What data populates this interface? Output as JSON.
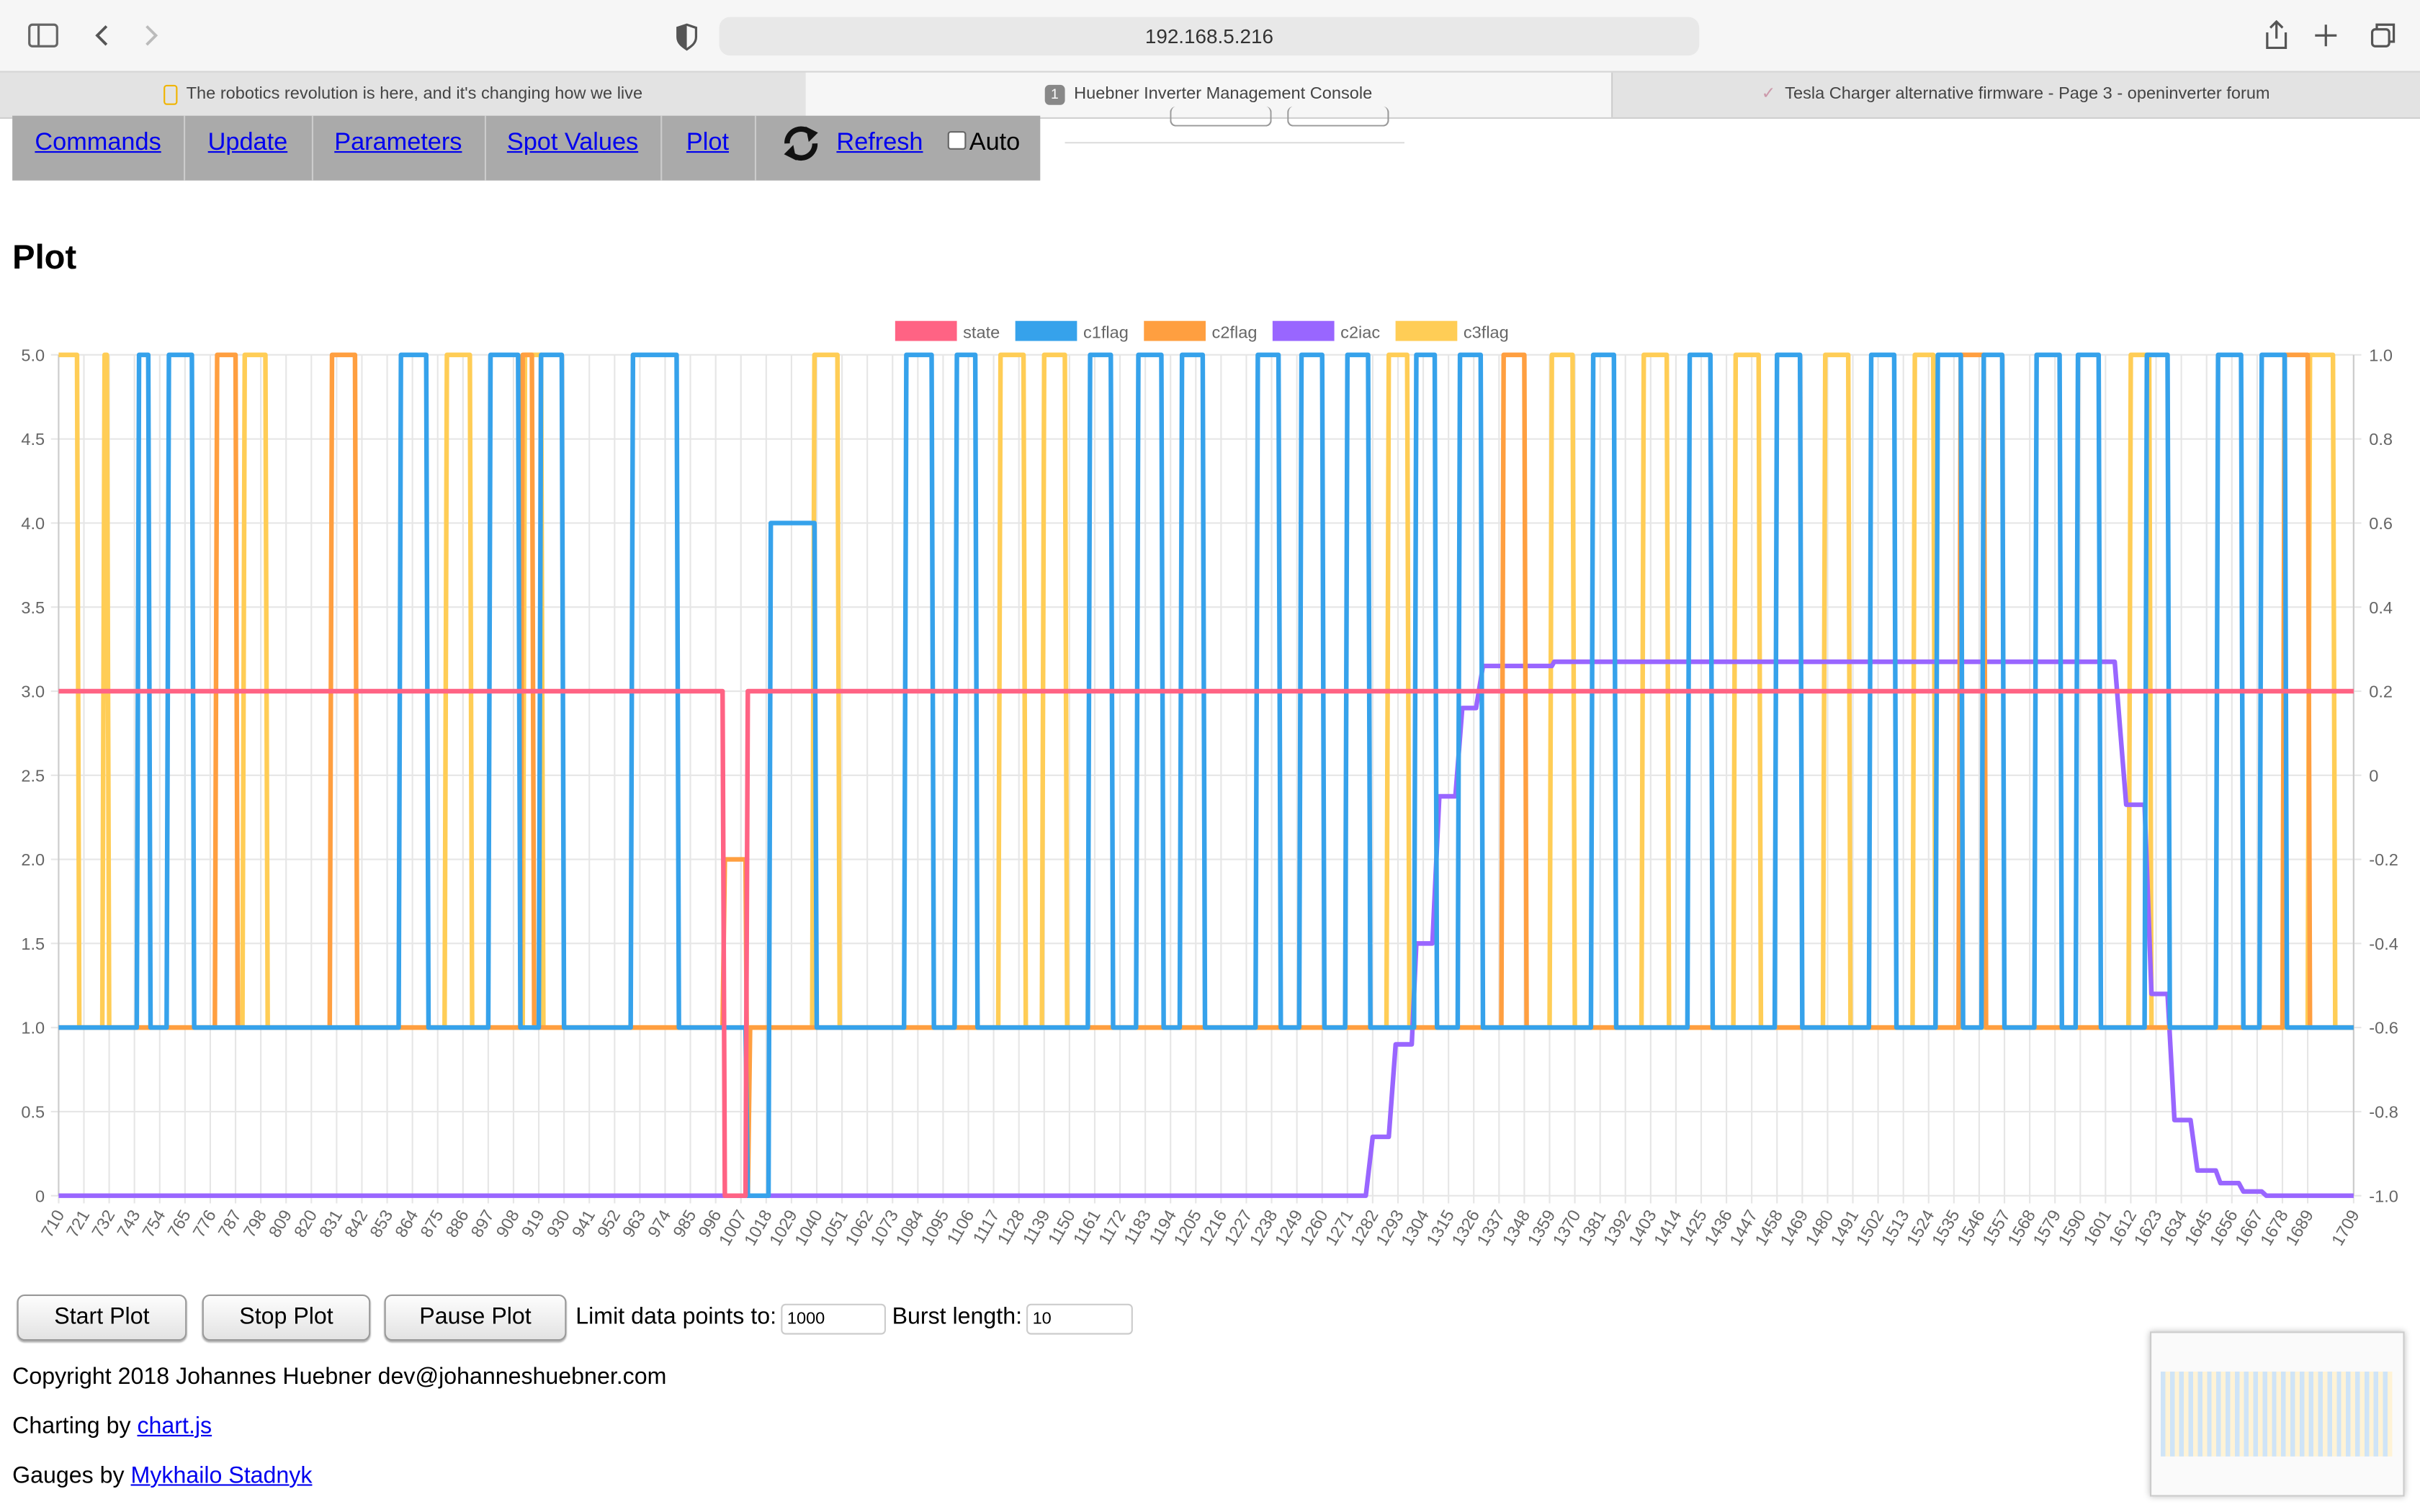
{
  "browser": {
    "url": "192.168.5.216",
    "tabs": [
      "The robotics revolution is here, and it's changing how we live",
      "Huebner Inverter Management Console",
      "Tesla Charger alternative firmware - Page 3 - openinverter forum"
    ],
    "tab_badge": "1"
  },
  "nav": {
    "links": [
      "Commands",
      "Update",
      "Parameters",
      "Spot Values",
      "Plot",
      "Refresh"
    ],
    "auto": "Auto"
  },
  "heading": "Plot",
  "chart_data": {
    "type": "line",
    "legend": "top",
    "grid": true,
    "xlim": [
      710,
      1709
    ],
    "xticks": [
      710,
      721,
      732,
      743,
      754,
      765,
      776,
      787,
      798,
      809,
      820,
      831,
      842,
      853,
      864,
      875,
      886,
      897,
      908,
      919,
      930,
      941,
      952,
      963,
      974,
      985,
      996,
      1007,
      1018,
      1029,
      1040,
      1051,
      1062,
      1073,
      1084,
      1095,
      1106,
      1117,
      1128,
      1139,
      1150,
      1161,
      1172,
      1183,
      1194,
      1205,
      1216,
      1227,
      1238,
      1249,
      1260,
      1271,
      1282,
      1293,
      1304,
      1315,
      1326,
      1337,
      1348,
      1359,
      1370,
      1381,
      1392,
      1403,
      1414,
      1425,
      1436,
      1447,
      1458,
      1469,
      1480,
      1491,
      1502,
      1513,
      1524,
      1535,
      1546,
      1557,
      1568,
      1579,
      1590,
      1601,
      1612,
      1623,
      1634,
      1645,
      1656,
      1667,
      1678,
      1689,
      1709
    ],
    "ylim": [
      0,
      5
    ],
    "yticks": [
      0,
      0.5,
      {
        "value": 1,
        "label": "1.0"
      },
      1.5,
      {
        "value": 2,
        "label": "2.0"
      },
      2.5,
      {
        "value": 3,
        "label": "3.0"
      },
      3.5,
      {
        "value": 4,
        "label": "4.0"
      },
      4.5,
      {
        "value": 5,
        "label": "5.0"
      }
    ],
    "y2lim": [
      -1,
      1
    ],
    "y2ticks": [
      {
        "value": -1,
        "label": "-1.0"
      },
      -0.8,
      -0.6,
      -0.4,
      -0.2,
      0,
      0.2,
      0.4,
      0.6,
      0.8,
      {
        "value": 1,
        "label": "1.0"
      }
    ],
    "series": [
      {
        "name": "state",
        "color": "#ff6384",
        "x": [
          710,
          999,
          1000,
          1009,
          1010,
          1709
        ],
        "values": [
          3,
          3,
          0,
          0,
          3,
          3
        ]
      },
      {
        "name": "c1flag",
        "color": "#36a2eb",
        "x": [
          710,
          744,
          745,
          749,
          750,
          757,
          758,
          768,
          769,
          858,
          859,
          870,
          871,
          897,
          898,
          910,
          911,
          919,
          920,
          929,
          930,
          959,
          960,
          979,
          980,
          1009,
          1010,
          1019,
          1020,
          1039,
          1040,
          1078,
          1079,
          1090,
          1091,
          1100,
          1101,
          1109,
          1110,
          1158,
          1159,
          1168,
          1169,
          1179,
          1180,
          1190,
          1191,
          1198,
          1199,
          1208,
          1209,
          1231,
          1232,
          1241,
          1242,
          1250,
          1251,
          1260,
          1261,
          1270,
          1271,
          1280,
          1281,
          1300,
          1301,
          1309,
          1310,
          1319,
          1320,
          1329,
          1330,
          1377,
          1378,
          1387,
          1388,
          1419,
          1420,
          1429,
          1430,
          1457,
          1458,
          1468,
          1469,
          1498,
          1499,
          1509,
          1510,
          1527,
          1528,
          1538,
          1539,
          1547,
          1548,
          1556,
          1557,
          1570,
          1571,
          1581,
          1582,
          1588,
          1589,
          1598,
          1599,
          1618,
          1619,
          1628,
          1629,
          1649,
          1650,
          1660,
          1661,
          1668,
          1669,
          1679,
          1680,
          1709
        ],
        "values": [
          1,
          1,
          5,
          5,
          1,
          1,
          5,
          5,
          1,
          1,
          5,
          5,
          1,
          1,
          5,
          5,
          1,
          1,
          5,
          5,
          1,
          1,
          5,
          5,
          1,
          1,
          0,
          0,
          4,
          4,
          1,
          1,
          5,
          5,
          1,
          1,
          5,
          5,
          1,
          1,
          5,
          5,
          1,
          1,
          5,
          5,
          1,
          1,
          5,
          5,
          1,
          1,
          5,
          5,
          1,
          1,
          5,
          5,
          1,
          1,
          5,
          5,
          1,
          1,
          5,
          5,
          1,
          1,
          5,
          5,
          1,
          1,
          5,
          5,
          1,
          1,
          5,
          5,
          1,
          1,
          5,
          5,
          1,
          1,
          5,
          5,
          1,
          1,
          5,
          5,
          1,
          1,
          5,
          5,
          1,
          1,
          5,
          5,
          1,
          1,
          5,
          5,
          1,
          1,
          5,
          5,
          1,
          1,
          5,
          5,
          1,
          1,
          5,
          5,
          1,
          1
        ]
      },
      {
        "name": "c2flag",
        "color": "#ff9f40",
        "x": [
          710,
          778,
          779,
          787,
          788,
          828,
          829,
          839,
          840,
          911,
          912,
          916,
          917,
          999,
          1000,
          1009,
          1010,
          1011,
          1338,
          1339,
          1348,
          1349,
          1537,
          1538,
          1548,
          1549,
          1678,
          1679,
          1689,
          1690,
          1709
        ],
        "values": [
          1,
          1,
          5,
          5,
          1,
          1,
          5,
          5,
          1,
          1,
          5,
          5,
          1,
          1,
          2,
          2,
          0,
          1,
          1,
          5,
          5,
          1,
          1,
          5,
          5,
          1,
          1,
          5,
          5,
          1,
          1
        ]
      },
      {
        "name": "c2iac",
        "color": "#9966ff",
        "axis": "y2",
        "x": [
          710,
          1279,
          1282,
          1289,
          1292,
          1299,
          1301,
          1308,
          1311,
          1318,
          1321,
          1327,
          1330,
          1360,
          1361,
          1605,
          1610,
          1618,
          1621,
          1628,
          1631,
          1638,
          1641,
          1649,
          1651,
          1659,
          1661,
          1669,
          1671,
          1709
        ],
        "values": [
          -1,
          -1,
          -0.86,
          -0.86,
          -0.64,
          -0.64,
          -0.4,
          -0.4,
          -0.05,
          -0.05,
          0.16,
          0.16,
          0.26,
          0.26,
          0.27,
          0.27,
          -0.07,
          -0.07,
          -0.52,
          -0.52,
          -0.82,
          -0.82,
          -0.94,
          -0.94,
          -0.97,
          -0.97,
          -0.99,
          -0.99,
          -1,
          -1
        ]
      },
      {
        "name": "c3flag",
        "color": "#ffcd56",
        "x": [
          710,
          718,
          719,
          729,
          730,
          731,
          732,
          790,
          791,
          800,
          801,
          878,
          879,
          889,
          890,
          912,
          913,
          920,
          921,
          1038,
          1039,
          1049,
          1050,
          1119,
          1120,
          1130,
          1131,
          1138,
          1139,
          1148,
          1149,
          1288,
          1289,
          1297,
          1298,
          1359,
          1360,
          1369,
          1370,
          1399,
          1400,
          1410,
          1411,
          1439,
          1440,
          1450,
          1451,
          1478,
          1479,
          1489,
          1490,
          1517,
          1518,
          1526,
          1527,
          1611,
          1612,
          1620,
          1621,
          1689,
          1690,
          1700,
          1701,
          1709
        ],
        "values": [
          5,
          5,
          1,
          1,
          5,
          5,
          1,
          1,
          5,
          5,
          1,
          1,
          5,
          5,
          1,
          1,
          5,
          5,
          1,
          1,
          5,
          5,
          1,
          1,
          5,
          5,
          1,
          1,
          5,
          5,
          1,
          1,
          5,
          5,
          1,
          1,
          5,
          5,
          1,
          1,
          5,
          5,
          1,
          1,
          5,
          5,
          1,
          1,
          5,
          5,
          1,
          1,
          5,
          5,
          1,
          1,
          5,
          5,
          1,
          1,
          5,
          5,
          1,
          1
        ]
      }
    ]
  },
  "controls": {
    "buttons": [
      "Start Plot",
      "Stop Plot",
      "Pause Plot"
    ],
    "limit_label": "Limit data points to:",
    "limit_value": "1000",
    "burst_label": "Burst length:",
    "burst_value": "10"
  },
  "footer": {
    "copyright": "Copyright 2018 Johannes Huebner dev@johanneshuebner.com",
    "charting": "Charting by",
    "charting_link": "chart.js",
    "gauges": "Gauges by",
    "gauges_link": "Mykhailo Stadnyk"
  }
}
